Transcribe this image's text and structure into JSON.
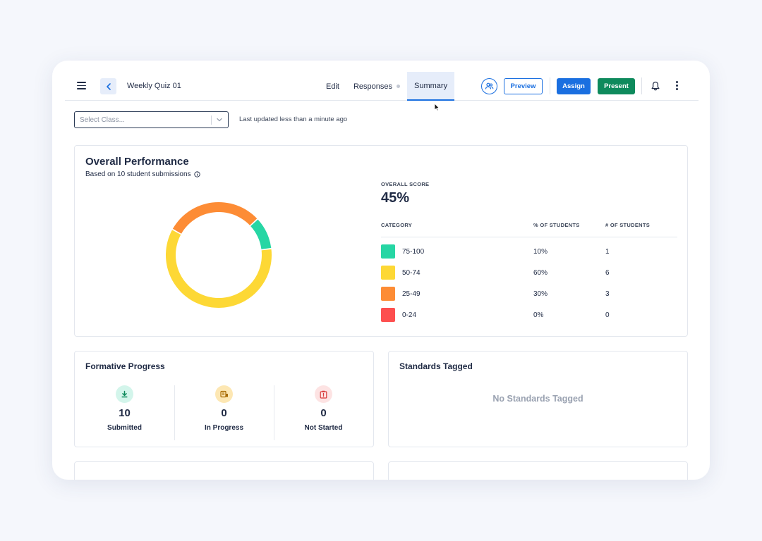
{
  "header": {
    "quiz_title": "Weekly Quiz 01",
    "tabs": [
      {
        "label": "Edit",
        "active": false
      },
      {
        "label": "Responses",
        "active": false
      },
      {
        "label": "Summary",
        "active": true
      }
    ],
    "preview_label": "Preview",
    "assign_label": "Assign",
    "present_label": "Present",
    "icons": {
      "menu": "hamburger-menu-icon",
      "back": "chevron-left-icon",
      "people": "people-icon",
      "notifications": "bell-icon",
      "more": "kebab-menu-icon"
    }
  },
  "filter": {
    "select_placeholder": "Select Class...",
    "last_updated": "Last updated less than a minute ago"
  },
  "overall_performance": {
    "title": "Overall Performance",
    "subtitle": "Based on 10 student submissions",
    "score_label": "OVERALL SCORE",
    "score_value": "45%",
    "columns": {
      "category": "CATEGORY",
      "pct": "% OF STUDENTS",
      "count": "# OF STUDENTS"
    },
    "categories": [
      {
        "label": "75-100",
        "pct": "10%",
        "count": "1",
        "color": "#26d6a4"
      },
      {
        "label": "50-74",
        "pct": "60%",
        "count": "6",
        "color": "#fdd835"
      },
      {
        "label": "25-49",
        "pct": "30%",
        "count": "3",
        "color": "#fd8c35"
      },
      {
        "label": "0-24",
        "pct": "0%",
        "count": "0",
        "color": "#fd4f4f"
      }
    ]
  },
  "chart_data": {
    "type": "pie",
    "categories": [
      "75-100",
      "50-74",
      "25-49",
      "0-24"
    ],
    "values": [
      10,
      60,
      30,
      0
    ],
    "colors": [
      "#26d6a4",
      "#fdd835",
      "#fd8c35",
      "#fd4f4f"
    ],
    "donut": true
  },
  "formative_progress": {
    "title": "Formative Progress",
    "stats": [
      {
        "value": "10",
        "label": "Submitted",
        "icon": "download-icon",
        "bg": "#d3f5eb",
        "fg": "#0e8a5c"
      },
      {
        "value": "0",
        "label": "In Progress",
        "icon": "clipboard-list-icon",
        "bg": "#fde7b3",
        "fg": "#a86a00"
      },
      {
        "value": "0",
        "label": "Not Started",
        "icon": "alert-clipboard-icon",
        "bg": "#fde3e3",
        "fg": "#d83a3a"
      }
    ]
  },
  "standards_tagged": {
    "title": "Standards Tagged",
    "empty_text": "No Standards Tagged"
  }
}
